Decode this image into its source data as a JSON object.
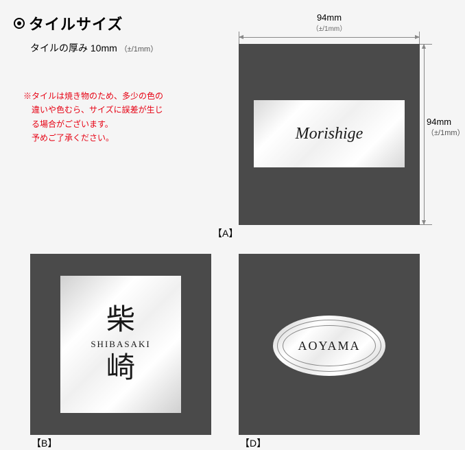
{
  "title": "タイルサイズ",
  "subtitle_prefix": "タイルの厚み 10mm",
  "subtitle_tol": "（±/1mm）",
  "notice_line1": "※タイルは焼き物のため、多少の色の",
  "notice_line2": "　違いや色むら、サイズに誤差が生じ",
  "notice_line3": "　る場合がございます。",
  "notice_line4": "　予めご了承ください。",
  "dim_width": "94mm",
  "dim_width_tol": "（±/1mm）",
  "dim_height": "94mm",
  "dim_height_tol": "（±/1mm）",
  "label_a": "【A】",
  "label_b": "【B】",
  "label_d": "【D】",
  "plate_a_text": "Morishige",
  "plate_b_kanji1": "柴",
  "plate_b_romaji": "SHIBASAKI",
  "plate_b_kanji2": "崎",
  "plate_d_text": "AOYAMA",
  "colors": {
    "tile_bg": "#4a4a4a",
    "page_bg": "#f5f5f5",
    "notice": "#e60012",
    "dim_line": "#888888"
  }
}
